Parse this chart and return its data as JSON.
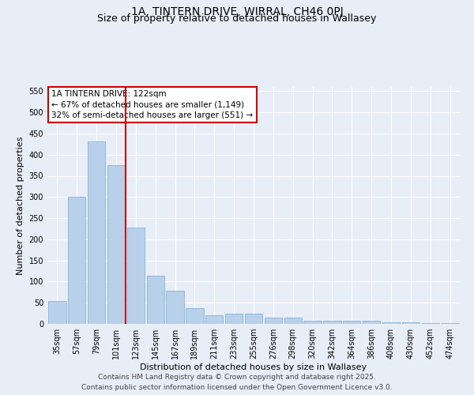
{
  "title": "1A, TINTERN DRIVE, WIRRAL, CH46 0PJ",
  "subtitle": "Size of property relative to detached houses in Wallasey",
  "xlabel": "Distribution of detached houses by size in Wallasey",
  "ylabel": "Number of detached properties",
  "categories": [
    "35sqm",
    "57sqm",
    "79sqm",
    "101sqm",
    "123sqm",
    "145sqm",
    "167sqm",
    "189sqm",
    "211sqm",
    "233sqm",
    "255sqm",
    "276sqm",
    "298sqm",
    "320sqm",
    "342sqm",
    "364sqm",
    "386sqm",
    "408sqm",
    "430sqm",
    "452sqm",
    "474sqm"
  ],
  "values": [
    55,
    300,
    432,
    375,
    228,
    113,
    78,
    38,
    20,
    25,
    25,
    15,
    15,
    7,
    8,
    8,
    7,
    4,
    3,
    2,
    1
  ],
  "bar_color": "#b8d0ea",
  "bar_edge_color": "#7aadd4",
  "property_label": "1A TINTERN DRIVE: 122sqm",
  "annotation_line1": "← 67% of detached houses are smaller (1,149)",
  "annotation_line2": "32% of semi-detached houses are larger (551) →",
  "vline_color": "#cc0000",
  "vline_x": 3.5,
  "annotation_box_color": "#cc0000",
  "ylim": [
    0,
    560
  ],
  "yticks": [
    0,
    50,
    100,
    150,
    200,
    250,
    300,
    350,
    400,
    450,
    500,
    550
  ],
  "background_color": "#e8eef7",
  "grid_color": "#ffffff",
  "footer_line1": "Contains HM Land Registry data © Crown copyright and database right 2025.",
  "footer_line2": "Contains public sector information licensed under the Open Government Licence v3.0.",
  "title_fontsize": 10,
  "subtitle_fontsize": 9,
  "axis_label_fontsize": 8,
  "tick_fontsize": 7,
  "annotation_fontsize": 7.5,
  "footer_fontsize": 6.5
}
